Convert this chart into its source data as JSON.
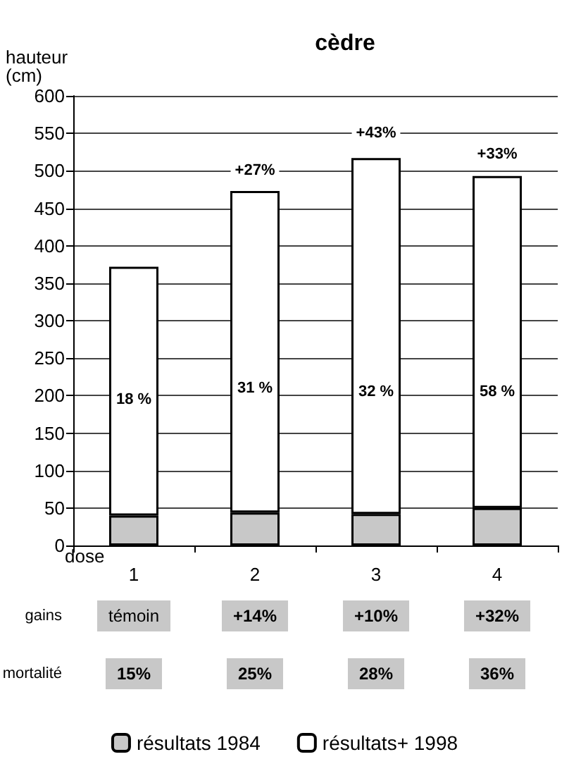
{
  "chart_data": {
    "type": "bar",
    "title": "cèdre",
    "xlabel": "dose",
    "ylabel": "hauteur (cm)",
    "categories": [
      "1",
      "2",
      "3",
      "4"
    ],
    "stacked": true,
    "series": [
      {
        "name": "résultats 1984",
        "color": "#c8c8c8",
        "values": [
          40,
          44,
          42,
          50
        ]
      },
      {
        "name": "résultats+ 1998",
        "color": "#ffffff",
        "values": [
          332,
          429,
          475,
          443
        ]
      }
    ],
    "ylim": [
      0,
      600
    ],
    "yticks": [
      0,
      50,
      100,
      150,
      200,
      250,
      300,
      350,
      400,
      450,
      500,
      550,
      600
    ],
    "grid": "y",
    "legend": "bottom",
    "annotations": [
      {
        "text": "+27%",
        "x": "2",
        "y": 500
      },
      {
        "text": "+43%",
        "x": "3",
        "y": 550
      },
      {
        "text": "+33%",
        "x": "4",
        "y": 522
      },
      {
        "text": "18 %",
        "x": "1",
        "y": 195
      },
      {
        "text": "31 %",
        "x": "2",
        "y": 210
      },
      {
        "text": "32 %",
        "x": "3",
        "y": 205
      },
      {
        "text": "58 %",
        "x": "4",
        "y": 205
      },
      "gains",
      "témoin",
      "+14%",
      "+10%",
      "+32%",
      "mortalité",
      "15%",
      "25%",
      "28%",
      "36%"
    ]
  }
}
